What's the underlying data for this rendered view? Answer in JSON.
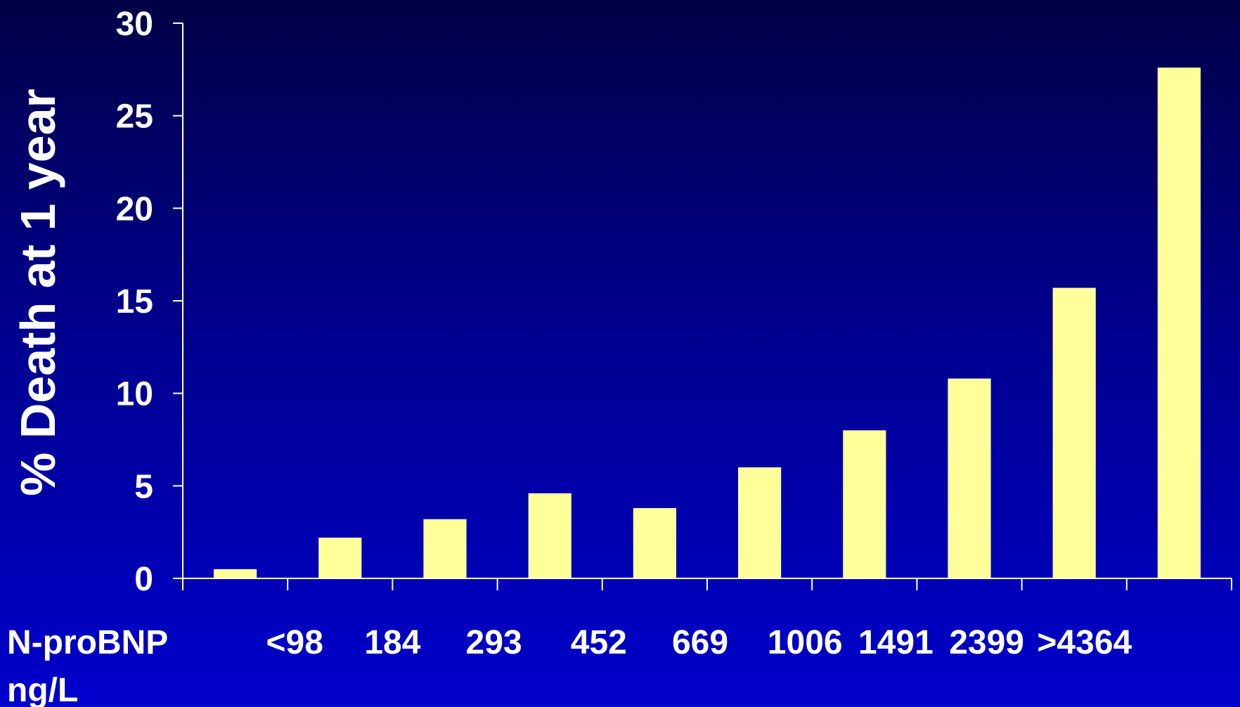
{
  "chart_data": {
    "type": "bar",
    "title": "",
    "ylabel": "% Death at 1 year",
    "xlabel_lines": [
      "N-proBNP",
      "ng/L"
    ],
    "ylim": [
      0,
      30
    ],
    "yticks": [
      0,
      5,
      10,
      15,
      20,
      25,
      30
    ],
    "xtick_labels": [
      "<98",
      "184",
      "293",
      "452",
      "669",
      "1006",
      "1491",
      "2399",
      ">4364"
    ],
    "series": [
      {
        "values": [
          0.5,
          2.2,
          3.2,
          4.6,
          3.8,
          6.0,
          8.0,
          10.8,
          15.7,
          27.6
        ]
      }
    ],
    "colors": {
      "bar": "#ffff99",
      "axis": "#ffffff",
      "text": "#ffffff"
    },
    "grid": false,
    "legend": "none"
  }
}
